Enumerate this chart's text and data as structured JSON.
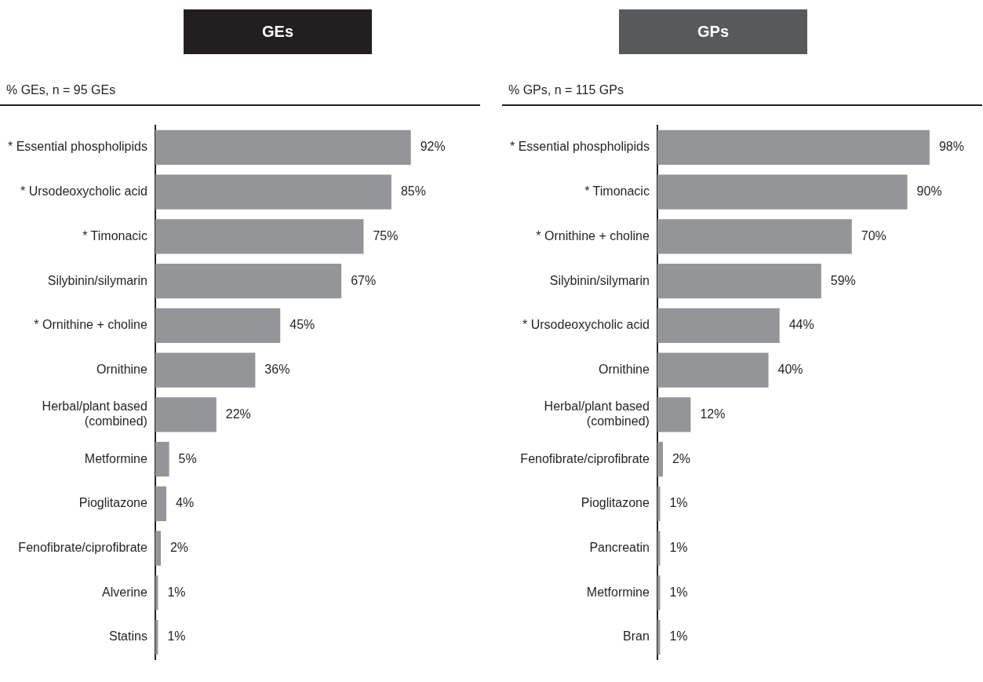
{
  "chart_data": [
    {
      "type": "bar",
      "orientation": "horizontal",
      "title": "GEs",
      "subtitle": "% GEs, n = 95 GEs",
      "categories": [
        "* Essential phospholipids",
        "* Ursodeoxycholic acid",
        "* Timonacic",
        "Silybinin/silymarin",
        "* Ornithine + choline",
        "Ornithine",
        "Herbal/plant based\n(combined)",
        "Metformine",
        "Pioglitazone",
        "Fenofibrate/ciprofibrate",
        "Alverine",
        "Statins"
      ],
      "values": [
        92,
        85,
        75,
        67,
        45,
        36,
        22,
        5,
        4,
        2,
        1,
        1
      ],
      "value_labels": [
        "92%",
        "85%",
        "75%",
        "67%",
        "45%",
        "36%",
        "22%",
        "5%",
        "4%",
        "2%",
        "1%",
        "1%"
      ],
      "color": "#939598",
      "tick_labels": "y",
      "grid": false,
      "legend": false
    },
    {
      "type": "bar",
      "orientation": "horizontal",
      "title": "GPs",
      "subtitle": "% GPs, n = 115 GPs",
      "categories": [
        "* Essential phospholipids",
        "* Timonacic",
        "* Ornithine + choline",
        "Silybinin/silymarin",
        "* Ursodeoxycholic acid",
        "Ornithine",
        "Herbal/plant based\n(combined)",
        "Fenofibrate/ciprofibrate",
        "Pioglitazone",
        "Pancreatin",
        "Metformine",
        "Bran"
      ],
      "values": [
        98,
        90,
        70,
        59,
        44,
        40,
        12,
        2,
        1,
        1,
        1,
        1
      ],
      "value_labels": [
        "98%",
        "90%",
        "70%",
        "59%",
        "44%",
        "40%",
        "12%",
        "2%",
        "1%",
        "1%",
        "1%",
        "1%"
      ],
      "color": "#939598",
      "tick_labels": "y",
      "grid": false,
      "legend": false
    }
  ]
}
